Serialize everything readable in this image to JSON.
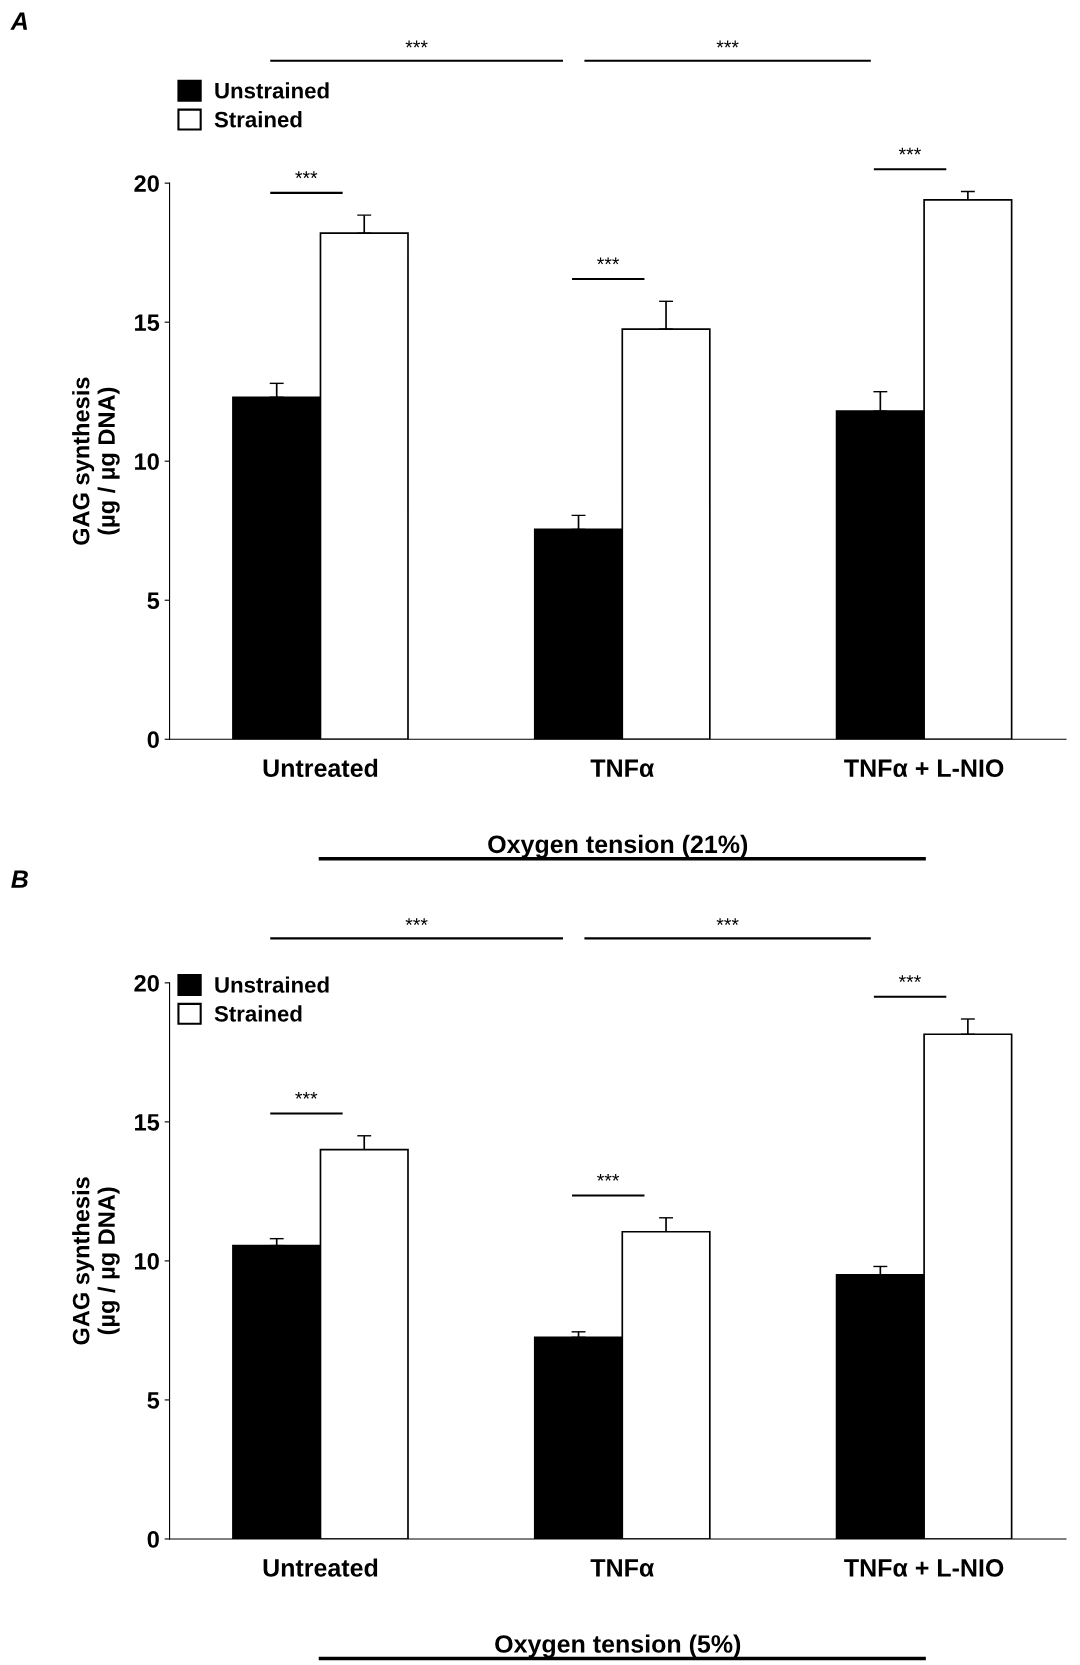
{
  "chart_data": [
    {
      "type": "bar",
      "categories": [
        "Untreated",
        "TNFα",
        "TNFα + L-NIO"
      ],
      "xlabel": "Oxygen tension (21%)",
      "ylabel": "GAG synthesis\n(µg / µg DNA)",
      "ylim": [
        0,
        20
      ],
      "yticks": [
        0,
        5,
        10,
        15,
        20
      ],
      "legend": "top left",
      "grid": false,
      "series": [
        {
          "name": "Unstrained",
          "color": "#000000",
          "values": [
            12.3,
            7.55,
            11.8
          ],
          "errors": [
            0.5,
            0.5,
            0.7
          ]
        },
        {
          "name": "Strained",
          "color": "#ffffff",
          "values": [
            18.2,
            14.75,
            19.4
          ],
          "errors": [
            0.65,
            1.0,
            0.3
          ]
        }
      ],
      "annotations": [
        "A",
        "***",
        "***",
        "***",
        "***",
        "***"
      ]
    },
    {
      "type": "bar",
      "categories": [
        "Untreated",
        "TNFα",
        "TNFα + L-NIO"
      ],
      "xlabel": "Oxygen tension (5%)",
      "ylabel": "GAG synthesis\n(µg / µg DNA)",
      "ylim": [
        0,
        20
      ],
      "yticks": [
        0,
        5,
        10,
        15,
        20
      ],
      "legend": "top left",
      "grid": false,
      "series": [
        {
          "name": "Unstrained",
          "color": "#000000",
          "values": [
            10.55,
            7.25,
            9.5
          ],
          "errors": [
            0.25,
            0.2,
            0.3
          ]
        },
        {
          "name": "Strained",
          "color": "#ffffff",
          "values": [
            14.0,
            11.05,
            18.15
          ],
          "errors": [
            0.5,
            0.5,
            0.55
          ]
        }
      ],
      "annotations": [
        "B",
        "***",
        "***",
        "***",
        "***",
        "***"
      ]
    }
  ]
}
